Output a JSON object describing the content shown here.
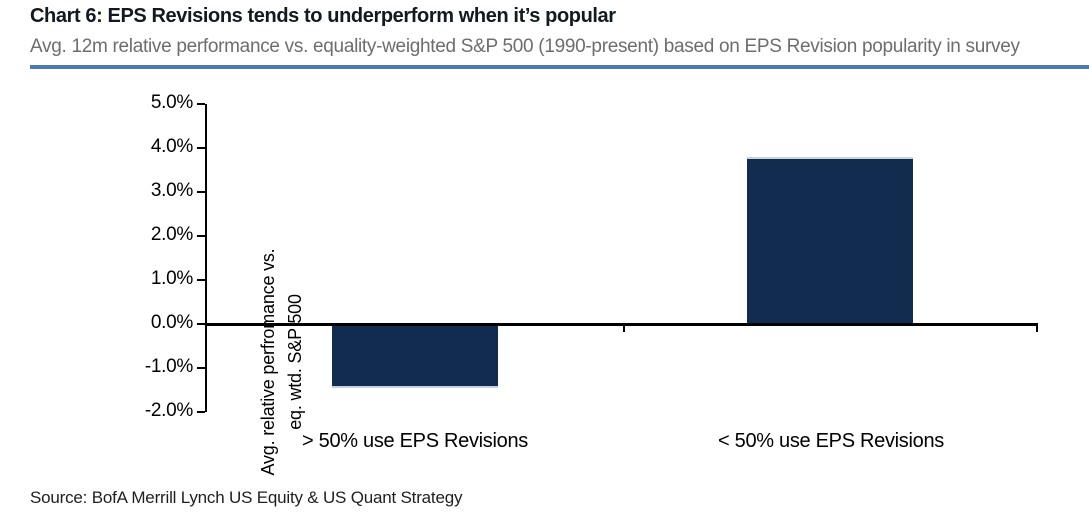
{
  "header": {
    "title": "Chart 6: EPS Revisions tends to underperform when it’s popular",
    "subtitle": "Avg. 12m relative performance vs. equality-weighted S&P 500 (1990-present) based on EPS Revision popularity in survey"
  },
  "footer": {
    "source": "Source: BofA Merrill Lynch US Equity & US Quant Strategy"
  },
  "theme": {
    "rule_color": "#4B7AB1",
    "title_color": "#14181F",
    "subtitle_color": "#6D6D6D",
    "axis_color": "#000000"
  },
  "chart_data": {
    "type": "bar",
    "title": "Chart 6: EPS Revisions tends to underperform when it’s popular",
    "subtitle": "Avg. 12m relative performance vs. equality-weighted S&P 500 (1990-present) based on EPS Revision popularity in survey",
    "categories": [
      "> 50% use EPS Revisions",
      "< 50% use EPS Revisions"
    ],
    "values": [
      -1.4,
      3.8
    ],
    "xlabel": "",
    "ylabel": "Avg. relative perfromance vs.\neq. wtd. S&P 500",
    "ylim": [
      -2.0,
      5.0
    ],
    "ytick_step": 1.0,
    "ytick_labels": [
      "5.0%",
      "4.0%",
      "3.0%",
      "2.0%",
      "1.0%",
      "0.0%",
      "-1.0%",
      "-2.0%"
    ],
    "bar_color": "#112C4F",
    "bar_edge_color": "#C8D2DC",
    "grid": false,
    "legend": false,
    "baseline": 0
  }
}
